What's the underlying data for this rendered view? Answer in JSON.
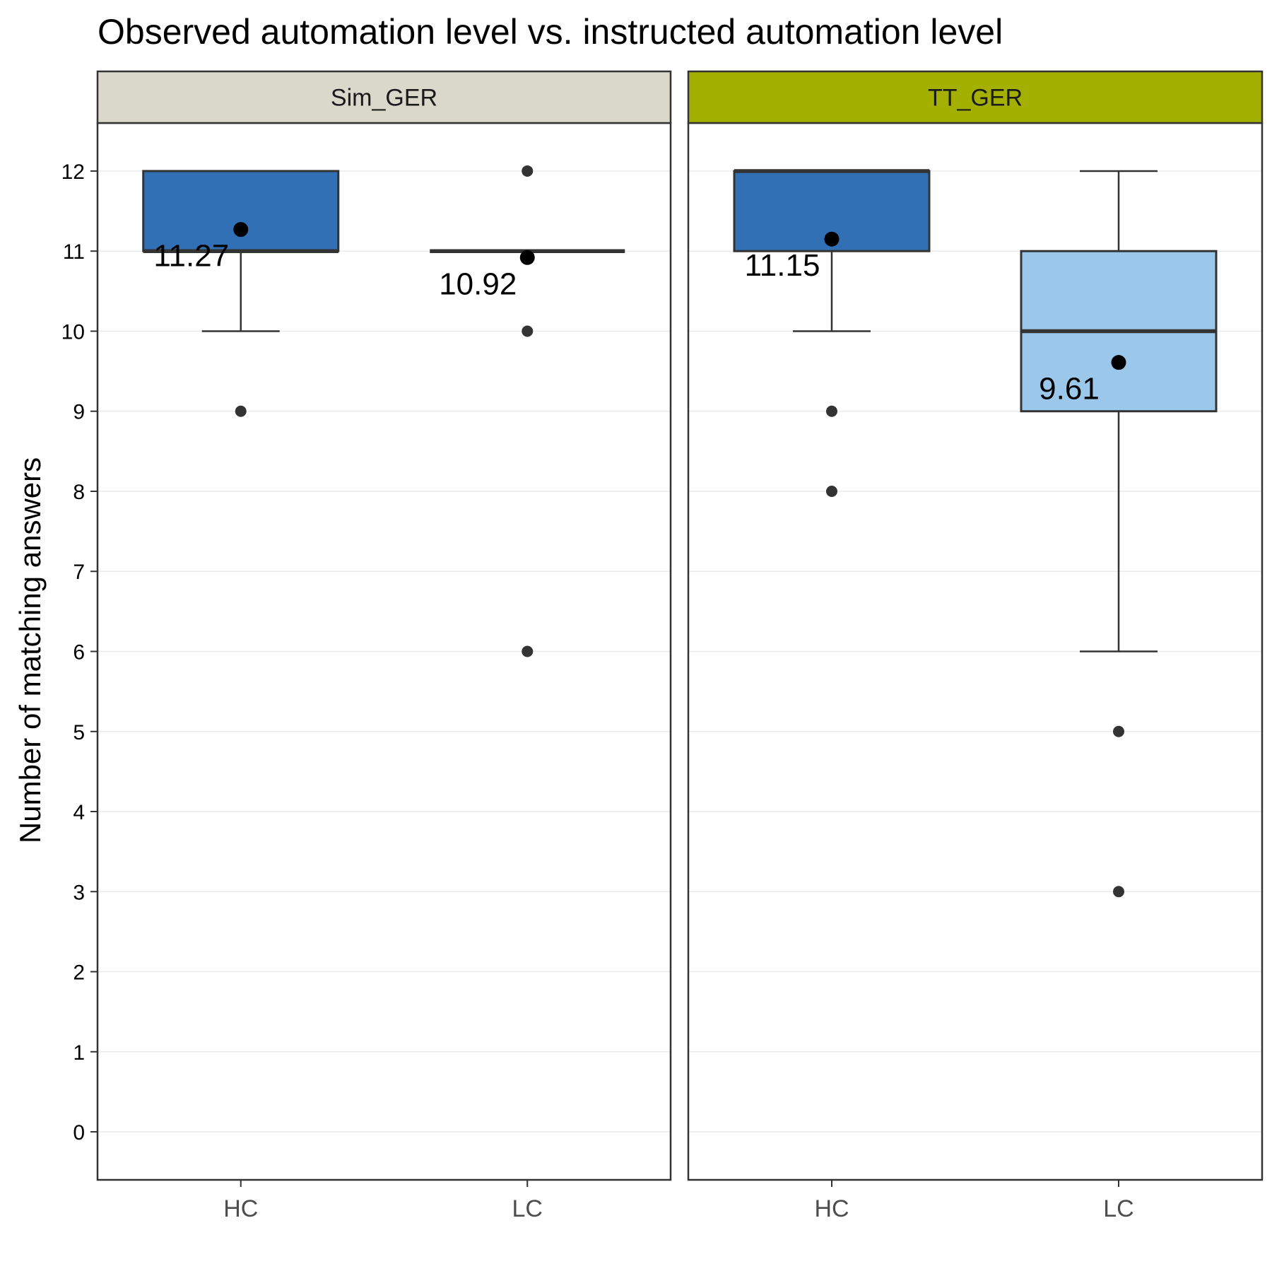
{
  "chart_data": {
    "type": "boxplot",
    "title": "Observed automation level vs. instructed automation level",
    "ylabel": "Number of matching answers",
    "xlabel": "",
    "ylim": [
      -0.6,
      12.6
    ],
    "yticks": [
      0,
      1,
      2,
      3,
      4,
      5,
      6,
      7,
      8,
      9,
      10,
      11,
      12
    ],
    "categories": [
      "HC",
      "LC"
    ],
    "grid": true,
    "facets": [
      {
        "name": "Sim_GER",
        "strip_color": "#d9d8cb",
        "boxes": [
          {
            "category": "HC",
            "q1": 11,
            "median": 11,
            "q3": 12,
            "whisker_low": 10,
            "whisker_high": 12,
            "outliers": [
              9
            ],
            "mean": 11.27,
            "mean_label": "11.27",
            "fill": "#3170b5"
          },
          {
            "category": "LC",
            "q1": 11,
            "median": 11,
            "q3": 11,
            "whisker_low": 11,
            "whisker_high": 11,
            "outliers": [
              12,
              10,
              6
            ],
            "mean": 10.92,
            "mean_label": "10.92",
            "fill": "#3170b5"
          }
        ]
      },
      {
        "name": "TT_GER",
        "strip_color": "#a4b000",
        "boxes": [
          {
            "category": "HC",
            "q1": 11,
            "median": 12,
            "q3": 12,
            "whisker_low": 10,
            "whisker_high": 12,
            "outliers": [
              9,
              8
            ],
            "mean": 11.15,
            "mean_label": "11.15",
            "fill": "#3170b5"
          },
          {
            "category": "LC",
            "q1": 9,
            "median": 10,
            "q3": 11,
            "whisker_low": 6,
            "whisker_high": 12,
            "outliers": [
              5,
              3
            ],
            "mean": 9.61,
            "mean_label": "9.61",
            "fill": "#9ac7ea"
          }
        ]
      }
    ]
  }
}
